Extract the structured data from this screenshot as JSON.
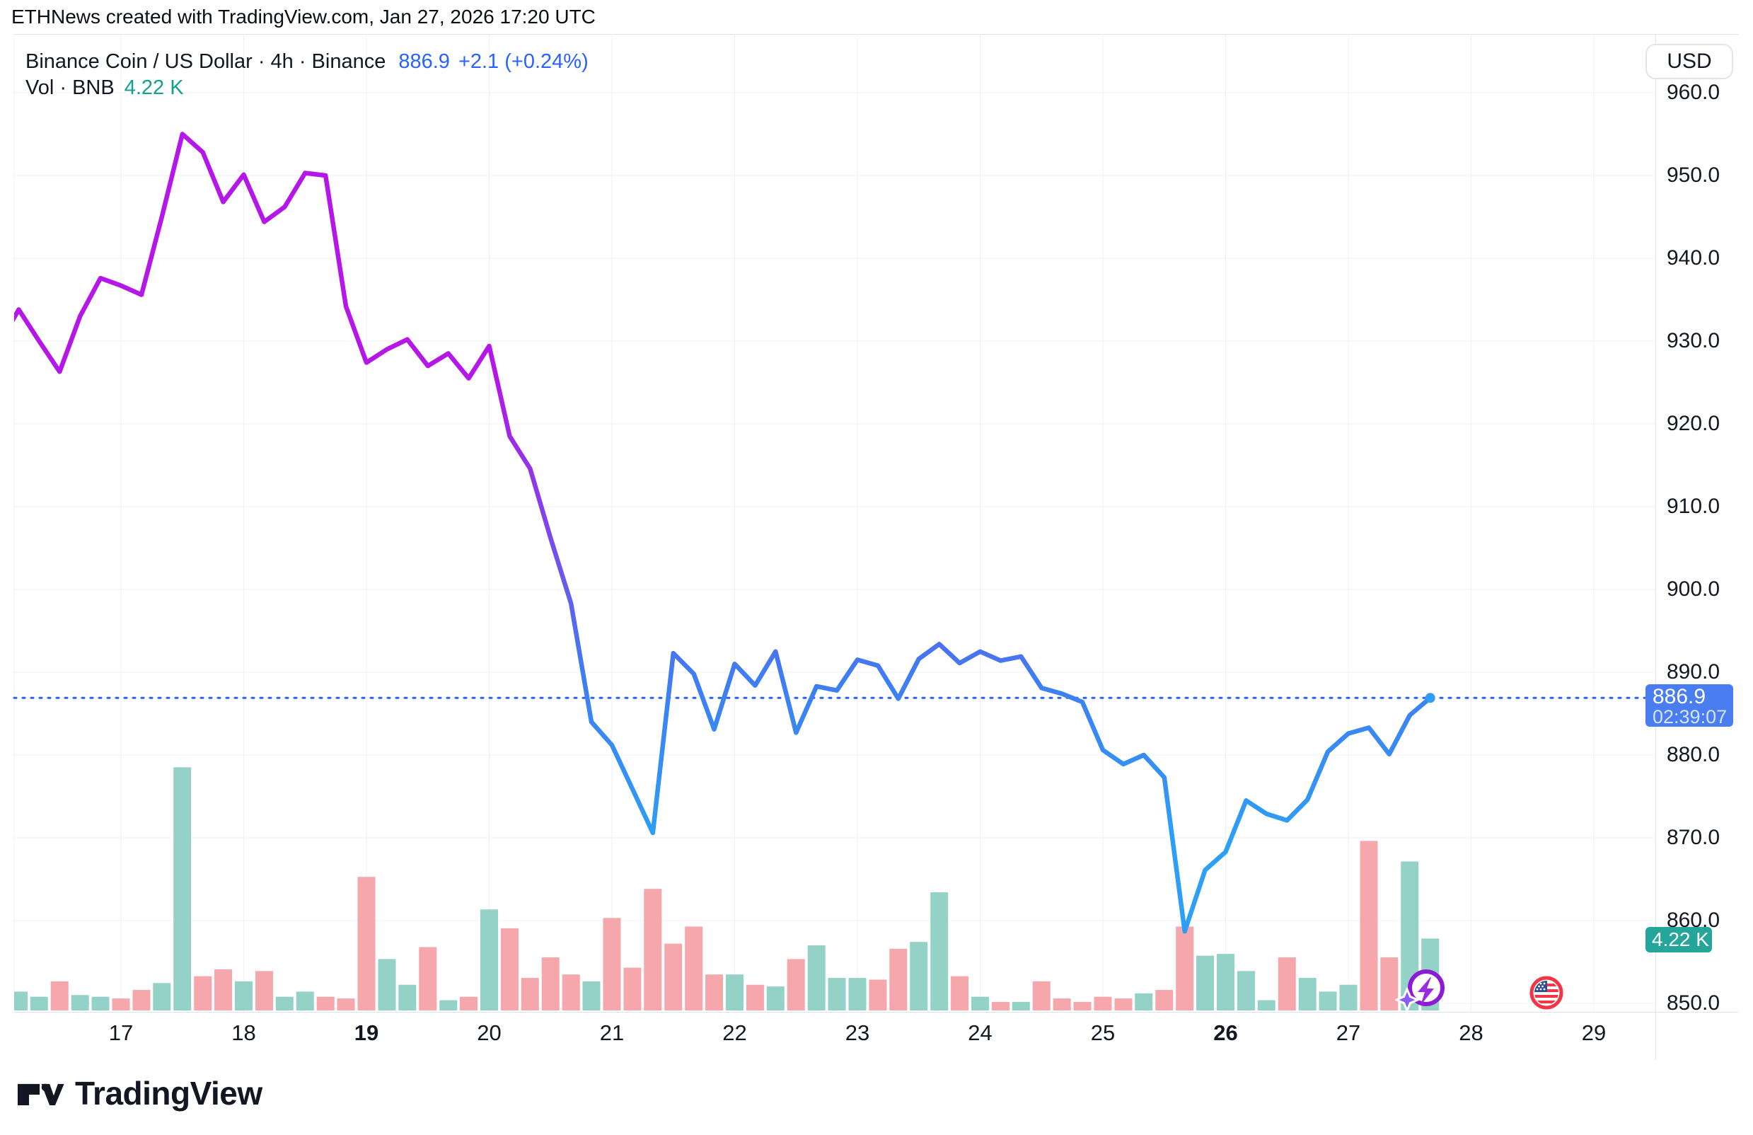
{
  "attribution": "ETHNews created with TradingView.com, Jan 27, 2026 17:20 UTC",
  "legend": {
    "title_full": "Binance Coin / US Dollar · 4h · Binance",
    "price": "886.9",
    "change": "+2.1 (+0.24%)",
    "vol_label": "Vol · BNB",
    "vol_value": "4.22 K"
  },
  "price_axis": {
    "currency_label": "USD",
    "last_price": "886.9",
    "countdown": "02:39:07",
    "volume_label": "4.22 K"
  },
  "logo": {
    "text": "TradingView"
  },
  "icons": {
    "spark_icon": "supercharts-spark-icon",
    "flag_icon": "us-flag-event-icon"
  },
  "colors": {
    "accent_blue": "#2962ff",
    "legend_teal": "#14a08e",
    "line_purple": "#b517e8",
    "line_violet": "#7a4aec",
    "line_blue": "#3f7df2",
    "line_light_blue": "#2d9ff5",
    "dot_blue": "#2f9df4",
    "vol_up": "#94d1c7",
    "vol_down": "#f6a7ac",
    "badge_blue": "#4a7df0",
    "badge_teal": "#26a69a",
    "grid": "#eef0f4",
    "border": "#e0e3eb",
    "text": "#131722"
  },
  "chart_data": {
    "type": "line",
    "title": "Binance Coin / US Dollar",
    "interval": "4h",
    "exchange": "Binance",
    "ylabel": "USD",
    "current_price": 886.9,
    "current_volume_k": 4.22,
    "grid": true,
    "legend_position": "top-left",
    "x_unit": "day of Jan 2026, 4h candles",
    "xlim": [
      16.0,
      29.5
    ],
    "ylim_price": [
      849,
      967
    ],
    "y_ticks": [
      "960.0",
      "950.0",
      "940.0",
      "930.0",
      "920.0",
      "910.0",
      "900.0",
      "890.0",
      "880.0",
      "870.0",
      "860.0",
      "850.0"
    ],
    "x_labels": [
      {
        "d": 17,
        "text": "17",
        "bold": false
      },
      {
        "d": 18,
        "text": "18",
        "bold": false
      },
      {
        "d": 19,
        "text": "19",
        "bold": true
      },
      {
        "d": 20,
        "text": "20",
        "bold": false
      },
      {
        "d": 21,
        "text": "21",
        "bold": false
      },
      {
        "d": 22,
        "text": "22",
        "bold": false
      },
      {
        "d": 23,
        "text": "23",
        "bold": false
      },
      {
        "d": 24,
        "text": "24",
        "bold": false
      },
      {
        "d": 25,
        "text": "25",
        "bold": false
      },
      {
        "d": 26,
        "text": "26",
        "bold": true
      },
      {
        "d": 27,
        "text": "27",
        "bold": false
      },
      {
        "d": 28,
        "text": "28",
        "bold": false
      },
      {
        "d": 29,
        "text": "29",
        "bold": false
      }
    ],
    "price_points": [
      [
        16.0,
        929.5
      ],
      [
        16.167,
        933.8
      ],
      [
        16.333,
        930.0
      ],
      [
        16.5,
        926.3
      ],
      [
        16.667,
        933.0
      ],
      [
        16.833,
        937.6
      ],
      [
        17.0,
        936.7
      ],
      [
        17.167,
        935.6
      ],
      [
        17.333,
        945.0
      ],
      [
        17.5,
        955.0
      ],
      [
        17.667,
        952.8
      ],
      [
        17.833,
        946.8
      ],
      [
        18.0,
        950.1
      ],
      [
        18.167,
        944.4
      ],
      [
        18.333,
        946.2
      ],
      [
        18.5,
        950.3
      ],
      [
        18.667,
        950.0
      ],
      [
        18.833,
        934.2
      ],
      [
        19.0,
        927.4
      ],
      [
        19.167,
        929.0
      ],
      [
        19.333,
        930.2
      ],
      [
        19.5,
        927.0
      ],
      [
        19.667,
        928.5
      ],
      [
        19.833,
        925.5
      ],
      [
        20.0,
        929.4
      ],
      [
        20.167,
        918.5
      ],
      [
        20.333,
        914.6
      ],
      [
        20.5,
        906.2
      ],
      [
        20.667,
        898.3
      ],
      [
        20.833,
        884.0
      ],
      [
        21.0,
        881.2
      ],
      [
        21.167,
        875.9
      ],
      [
        21.333,
        870.6
      ],
      [
        21.5,
        892.3
      ],
      [
        21.667,
        889.8
      ],
      [
        21.833,
        883.1
      ],
      [
        22.0,
        891.0
      ],
      [
        22.167,
        888.4
      ],
      [
        22.333,
        892.5
      ],
      [
        22.5,
        882.7
      ],
      [
        22.667,
        888.3
      ],
      [
        22.833,
        887.8
      ],
      [
        23.0,
        891.5
      ],
      [
        23.167,
        890.8
      ],
      [
        23.333,
        886.8
      ],
      [
        23.5,
        891.6
      ],
      [
        23.667,
        893.4
      ],
      [
        23.833,
        891.1
      ],
      [
        24.0,
        892.5
      ],
      [
        24.167,
        891.4
      ],
      [
        24.333,
        891.9
      ],
      [
        24.5,
        888.1
      ],
      [
        24.667,
        887.4
      ],
      [
        24.833,
        886.4
      ],
      [
        25.0,
        880.6
      ],
      [
        25.167,
        878.9
      ],
      [
        25.333,
        880.0
      ],
      [
        25.5,
        877.3
      ],
      [
        25.667,
        858.7
      ],
      [
        25.833,
        866.1
      ],
      [
        26.0,
        868.3
      ],
      [
        26.167,
        874.5
      ],
      [
        26.333,
        872.9
      ],
      [
        26.5,
        872.1
      ],
      [
        26.667,
        874.6
      ],
      [
        26.833,
        880.4
      ],
      [
        27.0,
        882.6
      ],
      [
        27.167,
        883.3
      ],
      [
        27.333,
        880.1
      ],
      [
        27.5,
        884.8
      ],
      [
        27.667,
        886.9
      ]
    ],
    "volume_points_k": [
      [
        16.167,
        1.1,
        "up"
      ],
      [
        16.333,
        0.8,
        "up"
      ],
      [
        16.5,
        1.7,
        "down"
      ],
      [
        16.667,
        0.9,
        "up"
      ],
      [
        16.833,
        0.8,
        "up"
      ],
      [
        17.0,
        0.7,
        "down"
      ],
      [
        17.167,
        1.2,
        "down"
      ],
      [
        17.333,
        1.6,
        "up"
      ],
      [
        17.5,
        14.2,
        "up"
      ],
      [
        17.667,
        2.0,
        "down"
      ],
      [
        17.833,
        2.4,
        "down"
      ],
      [
        18.0,
        1.7,
        "up"
      ],
      [
        18.167,
        2.3,
        "down"
      ],
      [
        18.333,
        0.8,
        "up"
      ],
      [
        18.5,
        1.1,
        "up"
      ],
      [
        18.667,
        0.8,
        "down"
      ],
      [
        18.833,
        0.7,
        "down"
      ],
      [
        19.0,
        7.8,
        "down"
      ],
      [
        19.167,
        3.0,
        "up"
      ],
      [
        19.333,
        1.5,
        "up"
      ],
      [
        19.5,
        3.7,
        "down"
      ],
      [
        19.667,
        0.6,
        "up"
      ],
      [
        19.833,
        0.8,
        "down"
      ],
      [
        20.0,
        5.9,
        "up"
      ],
      [
        20.167,
        4.8,
        "down"
      ],
      [
        20.333,
        1.9,
        "down"
      ],
      [
        20.5,
        3.1,
        "down"
      ],
      [
        20.667,
        2.1,
        "down"
      ],
      [
        20.833,
        1.7,
        "up"
      ],
      [
        21.0,
        5.4,
        "down"
      ],
      [
        21.167,
        2.5,
        "down"
      ],
      [
        21.333,
        7.1,
        "down"
      ],
      [
        21.5,
        3.9,
        "down"
      ],
      [
        21.667,
        4.9,
        "down"
      ],
      [
        21.833,
        2.1,
        "down"
      ],
      [
        22.0,
        2.1,
        "up"
      ],
      [
        22.167,
        1.5,
        "down"
      ],
      [
        22.333,
        1.4,
        "up"
      ],
      [
        22.5,
        3.0,
        "down"
      ],
      [
        22.667,
        3.8,
        "up"
      ],
      [
        22.833,
        1.9,
        "up"
      ],
      [
        23.0,
        1.9,
        "up"
      ],
      [
        23.167,
        1.8,
        "down"
      ],
      [
        23.333,
        3.6,
        "down"
      ],
      [
        23.5,
        4.0,
        "up"
      ],
      [
        23.667,
        6.9,
        "up"
      ],
      [
        23.833,
        2.0,
        "down"
      ],
      [
        24.0,
        0.8,
        "up"
      ],
      [
        24.167,
        0.5,
        "down"
      ],
      [
        24.333,
        0.5,
        "up"
      ],
      [
        24.5,
        1.7,
        "down"
      ],
      [
        24.667,
        0.7,
        "down"
      ],
      [
        24.833,
        0.5,
        "down"
      ],
      [
        25.0,
        0.8,
        "down"
      ],
      [
        25.167,
        0.7,
        "down"
      ],
      [
        25.333,
        1.0,
        "up"
      ],
      [
        25.5,
        1.2,
        "down"
      ],
      [
        25.667,
        4.9,
        "down"
      ],
      [
        25.833,
        3.2,
        "up"
      ],
      [
        26.0,
        3.3,
        "up"
      ],
      [
        26.167,
        2.3,
        "up"
      ],
      [
        26.333,
        0.6,
        "up"
      ],
      [
        26.5,
        3.1,
        "down"
      ],
      [
        26.667,
        1.9,
        "up"
      ],
      [
        26.833,
        1.1,
        "up"
      ],
      [
        27.0,
        1.5,
        "up"
      ],
      [
        27.167,
        9.9,
        "down"
      ],
      [
        27.333,
        3.1,
        "down"
      ],
      [
        27.5,
        8.7,
        "up"
      ],
      [
        27.667,
        4.2,
        "up"
      ]
    ]
  }
}
